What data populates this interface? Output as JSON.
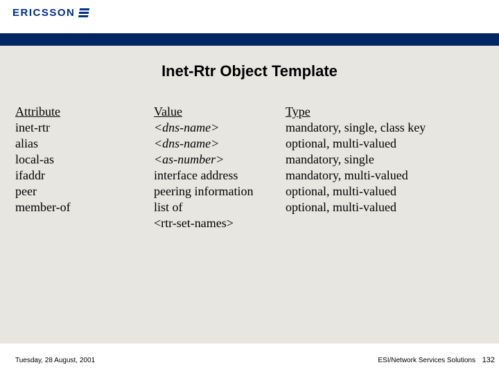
{
  "brand": {
    "name": "ERICSSON"
  },
  "title": "Inet-Rtr Object Template",
  "table": {
    "headers": {
      "attr": "Attribute",
      "val": "Value",
      "type": "Type"
    },
    "rows": [
      {
        "attr": "inet-rtr",
        "val": "<dns-name>",
        "val_italic": true,
        "type": "mandatory, single, class key"
      },
      {
        "attr": "alias",
        "val": "<dns-name>",
        "val_italic": true,
        "type": "optional, multi-valued"
      },
      {
        "attr": "local-as",
        "val": "<as-number>",
        "val_italic": true,
        "type": "mandatory, single"
      },
      {
        "attr": "ifaddr",
        "val": "interface address",
        "val_italic": false,
        "type": "mandatory, multi-valued"
      },
      {
        "attr": "peer",
        "val": "peering information",
        "val_italic": false,
        "type": "optional, multi-valued"
      },
      {
        "attr": "member-of",
        "val": "list of",
        "val_italic": false,
        "type": "optional, multi-valued"
      }
    ],
    "extra_val_line": "<rtr-set-names>"
  },
  "footer": {
    "date": "Tuesday, 28 August, 2001",
    "solutions": "ESI/Network Services Solutions",
    "page": "132"
  },
  "colors": {
    "navbar": "#002561",
    "content_bg": "#e8e6e1",
    "logo": "#002f87"
  }
}
